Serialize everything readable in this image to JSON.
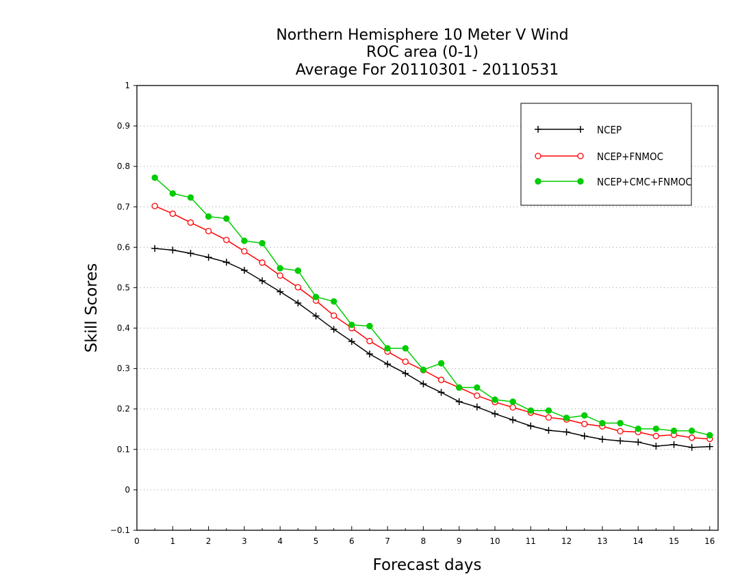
{
  "chart_data": {
    "type": "line",
    "title_lines": [
      "Northern Hemisphere 10 Meter V Wind",
      "ROC area (0-1)",
      "Average For 20110301 - 20110531"
    ],
    "xlabel": "Forecast days",
    "ylabel": "Skill Scores",
    "xlim": [
      0,
      16.2
    ],
    "ylim": [
      -0.1,
      1
    ],
    "xticks": [
      0,
      1,
      2,
      3,
      4,
      5,
      6,
      7,
      8,
      9,
      10,
      11,
      12,
      13,
      14,
      15,
      16
    ],
    "xtick_labels": [
      "0",
      "1",
      "2",
      "3",
      "4",
      "5",
      "6",
      "7",
      "8",
      "9",
      "10",
      "11",
      "12",
      "13",
      "14",
      "15",
      "16"
    ],
    "yticks": [
      -0.1,
      0,
      0.1,
      0.2,
      0.3,
      0.4,
      0.5,
      0.6,
      0.7,
      0.8,
      0.9,
      1
    ],
    "ytick_labels": [
      "−0.1",
      "0",
      "0.1",
      "0.2",
      "0.3",
      "0.4",
      "0.5",
      "0.6",
      "0.7",
      "0.8",
      "0.9",
      "1"
    ],
    "grid": "dotted horizontal",
    "legend_position": "top-right",
    "x": [
      0.5,
      1,
      1.5,
      2,
      2.5,
      3,
      3.5,
      4,
      4.5,
      5,
      5.5,
      6,
      6.5,
      7,
      7.5,
      8,
      8.5,
      9,
      9.5,
      10,
      10.5,
      11,
      11.5,
      12,
      12.5,
      13,
      13.5,
      14,
      14.5,
      15,
      15.5,
      16
    ],
    "series": [
      {
        "name": "NCEP",
        "color": "#000000",
        "marker": "plus",
        "values": [
          0.597,
          0.593,
          0.585,
          0.575,
          0.563,
          0.543,
          0.517,
          0.49,
          0.462,
          0.43,
          0.397,
          0.367,
          0.336,
          0.311,
          0.288,
          0.262,
          0.241,
          0.218,
          0.205,
          0.188,
          0.173,
          0.158,
          0.147,
          0.143,
          0.133,
          0.125,
          0.121,
          0.118,
          0.108,
          0.112,
          0.105,
          0.107
        ]
      },
      {
        "name": "NCEP+FNMOC",
        "color": "#ff0000",
        "marker": "open-circle",
        "values": [
          0.702,
          0.683,
          0.661,
          0.64,
          0.618,
          0.59,
          0.562,
          0.53,
          0.501,
          0.468,
          0.431,
          0.4,
          0.368,
          0.342,
          0.317,
          0.296,
          0.272,
          0.253,
          0.233,
          0.217,
          0.204,
          0.191,
          0.179,
          0.174,
          0.163,
          0.157,
          0.145,
          0.143,
          0.133,
          0.136,
          0.129,
          0.126
        ]
      },
      {
        "name": "NCEP+CMC+FNMOC",
        "color": "#00cc00",
        "marker": "filled-circle",
        "values": [
          0.772,
          0.733,
          0.723,
          0.676,
          0.671,
          0.616,
          0.61,
          0.548,
          0.542,
          0.477,
          0.466,
          0.408,
          0.405,
          0.35,
          0.35,
          0.297,
          0.313,
          0.253,
          0.253,
          0.223,
          0.218,
          0.196,
          0.196,
          0.178,
          0.184,
          0.165,
          0.165,
          0.151,
          0.151,
          0.146,
          0.146,
          0.135
        ]
      }
    ]
  }
}
